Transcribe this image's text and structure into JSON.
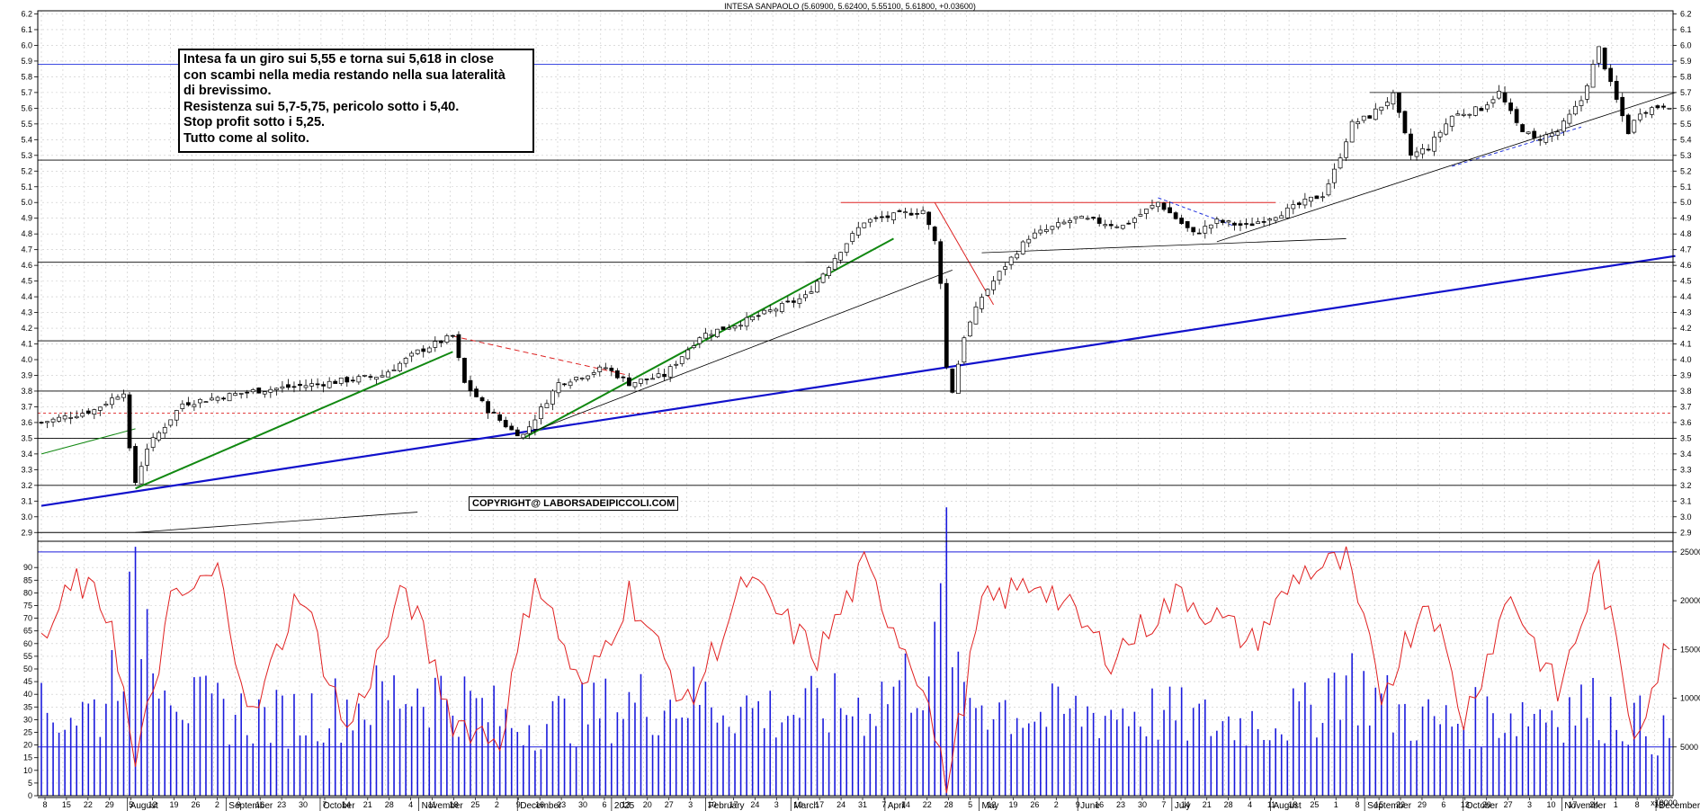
{
  "chart_data": [
    {
      "type": "candlestick",
      "title": "INTESA SANPAOLO (5.60900, 5.62400, 5.55100, 5.61800, +0.03600)",
      "ylim": [
        2.85,
        6.22
      ],
      "yticks": [
        2.9,
        3.0,
        3.1,
        3.2,
        3.3,
        3.4,
        3.5,
        3.6,
        3.7,
        3.8,
        3.9,
        4.0,
        4.1,
        4.2,
        4.3,
        4.4,
        4.5,
        4.6,
        4.7,
        4.8,
        4.9,
        5.0,
        5.1,
        5.2,
        5.3,
        5.4,
        5.5,
        5.6,
        5.7,
        5.8,
        5.9,
        6.0,
        6.1,
        6.2
      ],
      "grid": true,
      "price_path": [
        [
          0,
          3.6
        ],
        [
          9,
          3.68
        ],
        [
          14,
          3.8
        ],
        [
          15,
          3.42
        ],
        [
          16,
          3.22
        ],
        [
          18,
          3.44
        ],
        [
          24,
          3.72
        ],
        [
          36,
          3.8
        ],
        [
          48,
          3.85
        ],
        [
          58,
          3.9
        ],
        [
          64,
          4.05
        ],
        [
          70,
          4.15
        ],
        [
          72,
          3.85
        ],
        [
          76,
          3.68
        ],
        [
          80,
          3.55
        ],
        [
          82,
          3.52
        ],
        [
          88,
          3.85
        ],
        [
          96,
          3.95
        ],
        [
          100,
          3.85
        ],
        [
          106,
          3.9
        ],
        [
          112,
          4.15
        ],
        [
          120,
          4.25
        ],
        [
          130,
          4.4
        ],
        [
          136,
          4.7
        ],
        [
          140,
          4.88
        ],
        [
          150,
          4.95
        ],
        [
          152,
          4.75
        ],
        [
          153,
          4.5
        ],
        [
          154,
          3.95
        ],
        [
          155,
          3.8
        ],
        [
          157,
          4.15
        ],
        [
          160,
          4.4
        ],
        [
          164,
          4.6
        ],
        [
          168,
          4.78
        ],
        [
          176,
          4.9
        ],
        [
          184,
          4.85
        ],
        [
          190,
          5.0
        ],
        [
          196,
          4.8
        ],
        [
          200,
          4.88
        ],
        [
          205,
          4.85
        ],
        [
          212,
          4.95
        ],
        [
          216,
          5.02
        ],
        [
          218,
          5.05
        ],
        [
          220,
          5.2
        ],
        [
          223,
          5.5
        ],
        [
          226,
          5.55
        ],
        [
          230,
          5.68
        ],
        [
          233,
          5.3
        ],
        [
          236,
          5.35
        ],
        [
          240,
          5.55
        ],
        [
          245,
          5.6
        ],
        [
          248,
          5.7
        ],
        [
          251,
          5.5
        ],
        [
          254,
          5.4
        ],
        [
          258,
          5.45
        ],
        [
          262,
          5.65
        ],
        [
          265,
          5.98
        ],
        [
          267,
          5.75
        ],
        [
          270,
          5.45
        ],
        [
          272,
          5.58
        ],
        [
          276,
          5.62
        ]
      ],
      "series_name": "",
      "support_resistance": [
        2.9,
        3.2,
        3.5,
        3.66,
        3.8,
        4.12,
        4.62,
        5.27,
        5.88
      ],
      "annotation": {
        "note_lines": [
          "Intesa fa un giro sui 5,55 e torna sui 5,618 in close",
          "con scambi nella media restando nella sua lateralità",
          "di brevissimo.",
          "Resistenza sui 5,7-5,75, pericolo sotto i 5,40.",
          "Stop profit sotto i 5,25.",
          "Tutto come al solito."
        ],
        "copyright": "COPYRIGHT@ LABORSADEIPICCOLI.COM"
      }
    },
    {
      "type": "bar",
      "name": "volume",
      "ylim": [
        0,
        26000
      ],
      "yticks": [
        5000,
        10000,
        15000,
        20000,
        25000
      ],
      "volume_unit_label": "x10000",
      "reference_lines": [
        5000,
        25000
      ],
      "volume_path": [
        [
          0,
          9000
        ],
        [
          10,
          9500
        ],
        [
          14,
          18000
        ],
        [
          17,
          21000
        ],
        [
          25,
          9800
        ],
        [
          40,
          8500
        ],
        [
          56,
          10500
        ],
        [
          64,
          12000
        ],
        [
          70,
          11000
        ],
        [
          80,
          8000
        ],
        [
          90,
          8700
        ],
        [
          100,
          10200
        ],
        [
          112,
          10800
        ],
        [
          125,
          9200
        ],
        [
          140,
          10000
        ],
        [
          152,
          14500
        ],
        [
          154,
          26000
        ],
        [
          156,
          11500
        ],
        [
          170,
          8800
        ],
        [
          185,
          9500
        ],
        [
          200,
          8000
        ],
        [
          215,
          9000
        ],
        [
          221,
          13500
        ],
        [
          230,
          9500
        ],
        [
          238,
          8000
        ],
        [
          250,
          9200
        ],
        [
          262,
          10000
        ],
        [
          270,
          8800
        ],
        [
          276,
          6500
        ]
      ]
    },
    {
      "type": "line",
      "name": "oscillator",
      "ylim": [
        0,
        100
      ],
      "yticks": [
        0,
        5,
        10,
        15,
        20,
        25,
        30,
        35,
        40,
        45,
        50,
        55,
        60,
        65,
        70,
        75,
        80,
        85,
        90
      ],
      "oscillator_path": [
        [
          0,
          60
        ],
        [
          6,
          85
        ],
        [
          12,
          70
        ],
        [
          16,
          10
        ],
        [
          22,
          75
        ],
        [
          30,
          88
        ],
        [
          36,
          30
        ],
        [
          44,
          82
        ],
        [
          52,
          25
        ],
        [
          62,
          82
        ],
        [
          70,
          30
        ],
        [
          78,
          22
        ],
        [
          84,
          88
        ],
        [
          92,
          40
        ],
        [
          100,
          80
        ],
        [
          110,
          35
        ],
        [
          120,
          85
        ],
        [
          132,
          55
        ],
        [
          140,
          90
        ],
        [
          150,
          45
        ],
        [
          154,
          2
        ],
        [
          160,
          75
        ],
        [
          170,
          85
        ],
        [
          182,
          55
        ],
        [
          194,
          80
        ],
        [
          206,
          60
        ],
        [
          214,
          88
        ],
        [
          222,
          92
        ],
        [
          228,
          40
        ],
        [
          236,
          80
        ],
        [
          242,
          30
        ],
        [
          250,
          80
        ],
        [
          258,
          40
        ],
        [
          265,
          90
        ],
        [
          271,
          25
        ],
        [
          276,
          55
        ]
      ]
    }
  ],
  "x_axis": {
    "day_labels": [
      "8",
      "15",
      "22",
      "29",
      "5",
      "12",
      "19",
      "26",
      "2",
      "9",
      "16",
      "23",
      "30",
      "7",
      "14",
      "21",
      "28",
      "4",
      "11",
      "18",
      "25",
      "2",
      "9",
      "16",
      "23",
      "30",
      "6",
      "13",
      "20",
      "27",
      "3",
      "10",
      "17",
      "24",
      "3",
      "10",
      "17",
      "24",
      "31",
      "7",
      "14",
      "22",
      "28",
      "5",
      "12",
      "19",
      "26",
      "2",
      "9",
      "16",
      "23",
      "30",
      "7",
      "14",
      "21",
      "28",
      "4",
      "11",
      "18",
      "25",
      "1",
      "8",
      "15",
      "22",
      "29",
      "6",
      "13",
      "20",
      "27",
      "3",
      "10",
      "17",
      "24",
      "1",
      "8",
      "15"
    ],
    "month_labels": [
      {
        "label": "August",
        "at": 20
      },
      {
        "label": "September",
        "at": 42
      },
      {
        "label": "October",
        "at": 63
      },
      {
        "label": "November",
        "at": 85
      },
      {
        "label": "December",
        "at": 107
      },
      {
        "label": "2025",
        "at": 128
      },
      {
        "label": "February",
        "at": 149
      },
      {
        "label": "March",
        "at": 168
      },
      {
        "label": "April",
        "at": 189
      },
      {
        "label": "May",
        "at": 210
      },
      {
        "label": "June",
        "at": 232
      },
      {
        "label": "July",
        "at": 253
      },
      {
        "label": "August",
        "at": 275
      },
      {
        "label": "September",
        "at": 296
      },
      {
        "label": "October",
        "at": 318
      },
      {
        "label": "November",
        "at": 340
      },
      {
        "label": "December",
        "at": 361
      }
    ]
  }
}
